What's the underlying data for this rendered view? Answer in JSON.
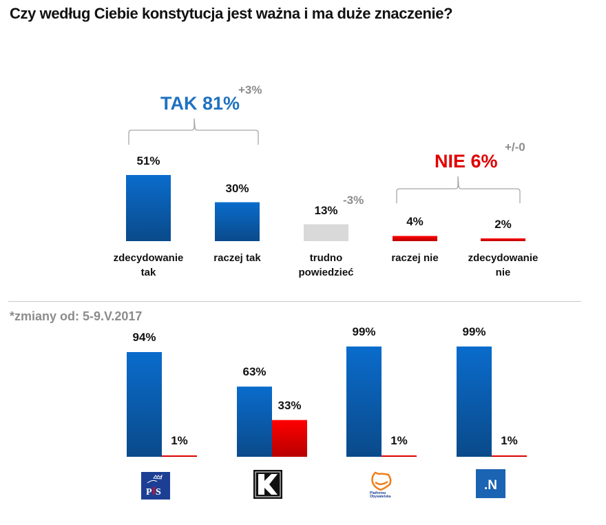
{
  "title": "Czy według Ciebie konstytucja jest ważna i  ma duże znaczenie?",
  "colors": {
    "blue_top": "#0a6ccc",
    "blue_bottom": "#0a4a8a",
    "red_top": "#ff0000",
    "red_bottom": "#b80000",
    "gray": "#d9d9d9",
    "tak": "#1f72c0",
    "nie": "#e00000",
    "change": "#8c8c8c"
  },
  "chart_data": [
    {
      "type": "bar",
      "title": "Czy według Ciebie konstytucja jest ważna i  ma duże znaczenie?",
      "categories": [
        "zdecydowanie tak",
        "raczej tak",
        "trudno powiedzieć",
        "raczej nie",
        "zdecydowanie nie"
      ],
      "category_lines": [
        [
          "zdecydowanie",
          "tak"
        ],
        [
          "raczej tak"
        ],
        [
          "trudno",
          "powiedzieć"
        ],
        [
          "raczej nie"
        ],
        [
          "zdecydowanie",
          "nie"
        ]
      ],
      "values": [
        51,
        30,
        13,
        4,
        2
      ],
      "value_labels": [
        "51%",
        "30%",
        "13%",
        "4%",
        "2%"
      ],
      "bar_colors": [
        "blue",
        "blue",
        "gray",
        "red",
        "red"
      ],
      "unit": "%",
      "groups": [
        {
          "label": "TAK 81%",
          "change": "+3%",
          "members": [
            0,
            1
          ]
        },
        {
          "label": "NIE 6%",
          "change": "+/-0",
          "members": [
            3,
            4
          ]
        }
      ],
      "annotations": [
        {
          "target": "trudno powiedzieć",
          "text": "-3%"
        }
      ],
      "note": "*zmiany od: 5-9.V.2017"
    },
    {
      "type": "bar",
      "categories": [
        "PiS",
        "Kukiz'15",
        "Platforma Obywatelska",
        "Nowoczesna"
      ],
      "series": [
        {
          "name": "tak",
          "color": "blue",
          "values": [
            94,
            63,
            99,
            99
          ],
          "value_labels": [
            "94%",
            "63%",
            "99%",
            "99%"
          ]
        },
        {
          "name": "nie",
          "color": "red",
          "values": [
            1,
            33,
            1,
            1
          ],
          "value_labels": [
            "1%",
            "33%",
            "1%",
            "1%"
          ]
        }
      ],
      "unit": "%",
      "logos": [
        {
          "name": "pis-logo",
          "text": "PiS"
        },
        {
          "name": "kukiz-logo",
          "text": "K"
        },
        {
          "name": "po-logo",
          "text": "Platforma Obywatelska"
        },
        {
          "name": "nowoczesna-logo",
          "text": ".N"
        }
      ]
    }
  ]
}
